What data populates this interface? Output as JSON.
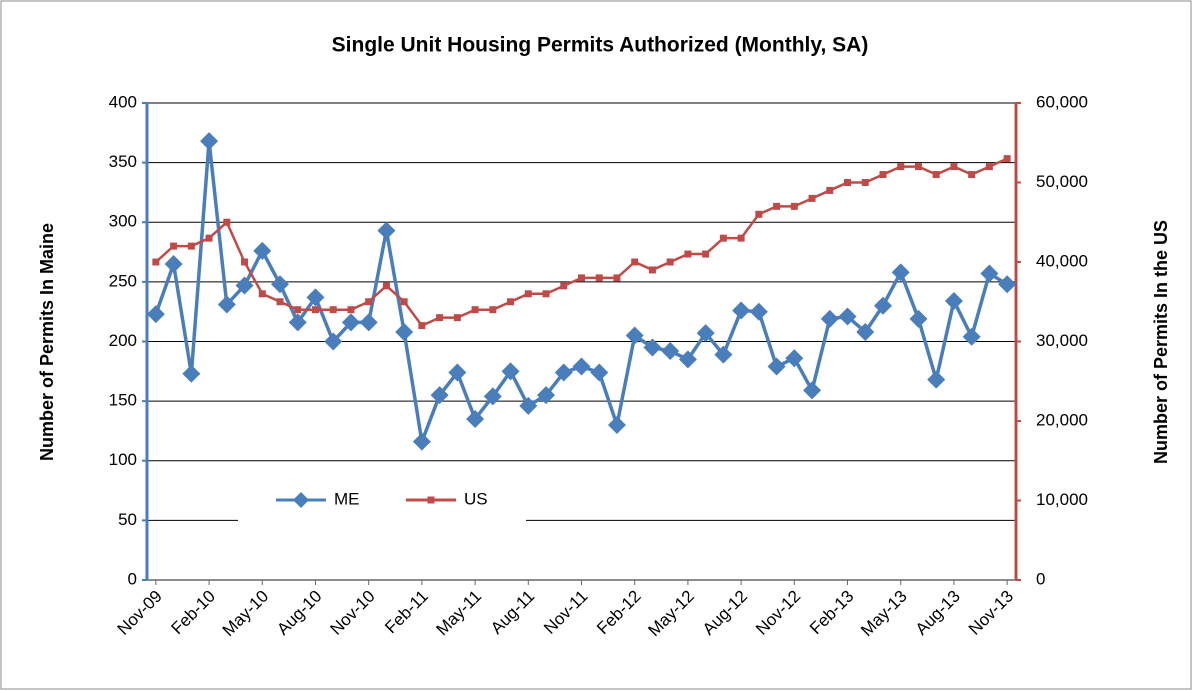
{
  "chart_data": {
    "type": "line",
    "title": "Single Unit Housing Permits Authorized (Monthly, SA)",
    "y_label": "Number of Permits In Maine",
    "y2_label": "Number of Permits In the US",
    "categories": [
      "Nov-09",
      null,
      null,
      "Feb-10",
      null,
      null,
      "May-10",
      null,
      null,
      "Aug-10",
      null,
      null,
      "Nov-10",
      null,
      null,
      "Feb-11",
      null,
      null,
      "May-11",
      null,
      null,
      "Aug-11",
      null,
      null,
      "Nov-11",
      null,
      null,
      "Feb-12",
      null,
      null,
      "May-12",
      null,
      null,
      "Aug-12",
      null,
      null,
      "Nov-12",
      null,
      null,
      "Feb-13",
      null,
      null,
      "May-13",
      null,
      null,
      "Aug-13",
      null,
      null,
      "Nov-13"
    ],
    "series": [
      {
        "name": "ME",
        "color": "#4a7ebb",
        "axis": "y",
        "values": [
          223,
          265,
          173,
          368,
          231,
          247,
          276,
          248,
          216,
          237,
          200,
          216,
          216,
          293,
          208,
          116,
          155,
          174,
          135,
          154,
          175,
          146,
          155,
          174,
          179,
          174,
          130,
          205,
          195,
          192,
          185,
          207,
          189,
          226,
          225,
          179,
          186,
          159,
          219,
          221,
          208,
          230,
          258,
          219,
          168,
          234,
          204,
          257,
          248
        ]
      },
      {
        "name": "US",
        "color": "#be4b48",
        "axis": "y2",
        "values": [
          40000,
          42000,
          42000,
          43000,
          45000,
          40000,
          36000,
          35000,
          34000,
          34000,
          34000,
          34000,
          35000,
          37000,
          35000,
          32000,
          33000,
          33000,
          34000,
          34000,
          35000,
          36000,
          36000,
          37000,
          38000,
          38000,
          38000,
          40000,
          39000,
          40000,
          41000,
          41000,
          43000,
          43000,
          46000,
          47000,
          47000,
          48000,
          49000,
          50000,
          50000,
          51000,
          52000,
          52000,
          51000,
          52000,
          51000,
          52000,
          53000
        ]
      }
    ],
    "ylim": [
      0,
      400
    ],
    "yticks": [
      0,
      50,
      100,
      150,
      200,
      250,
      300,
      350,
      400
    ],
    "y2lim": [
      0,
      60000
    ],
    "y2ticks": [
      0,
      {
        "value": 10000,
        "label": "10,000"
      },
      {
        "value": 20000,
        "label": "20,000"
      },
      {
        "value": 30000,
        "label": "30,000"
      },
      {
        "value": 40000,
        "label": "40,000"
      },
      {
        "value": 50000,
        "label": "50,000"
      },
      {
        "value": 60000,
        "label": "60,000"
      }
    ],
    "grid": true,
    "legend": "bottom-left"
  }
}
